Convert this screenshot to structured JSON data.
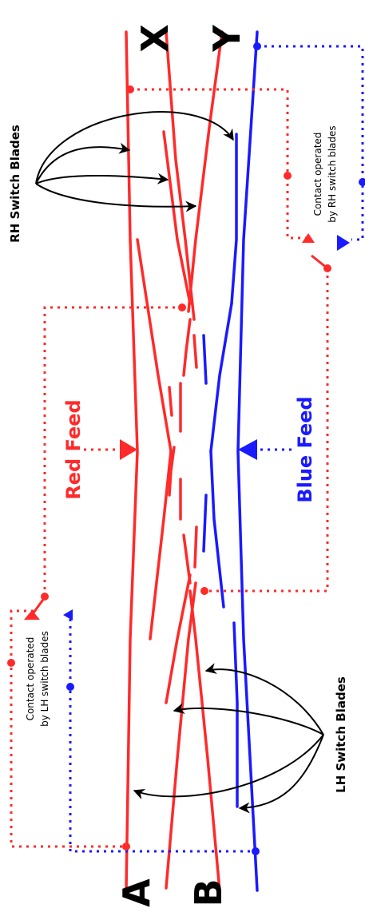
{
  "labels": {
    "track_a": "A",
    "track_b": "B",
    "track_x": "X",
    "track_y": "Y",
    "red_feed": "Red Feed",
    "blue_feed": "Blue Feed",
    "rh_switch_blades": "RH Switch Blades",
    "lh_switch_blades": "LH Switch Blades",
    "rh_contact_line1": "Contact operated",
    "rh_contact_line2": "by RH switch blades",
    "lh_contact_line1": "Contact operated",
    "lh_contact_line2": "by LH switch blades"
  },
  "colors": {
    "red": "#ff2a2a",
    "blue": "#1a1aff",
    "black": "#000000",
    "background": "#ffffff"
  }
}
